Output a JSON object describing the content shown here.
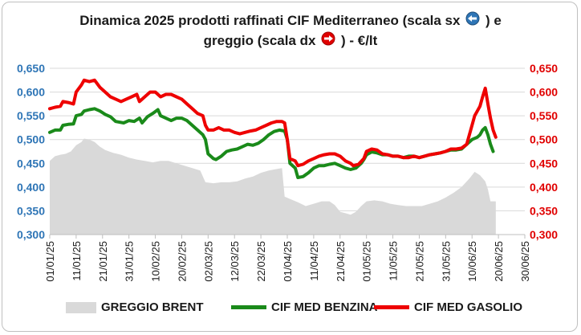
{
  "title_line1": "Dinamica 2025 prodotti raffinati CIF Mediterraneo (scala sx",
  "title_line1_end": ") e",
  "title_line2": "greggio (scala dx",
  "title_line2_end": ") - €/lt",
  "colors": {
    "left_axis": "#2e75b6",
    "right_axis": "#e00000",
    "brent": "#d9d9d9",
    "benzina": "#1a8a1a",
    "gasolio": "#ee0000"
  },
  "chart_data": {
    "type": "line",
    "x_ticks": [
      "01/01/25",
      "11/01/25",
      "21/01/25",
      "31/01/25",
      "10/02/25",
      "20/02/25",
      "02/03/25",
      "12/03/25",
      "22/03/25",
      "01/04/25",
      "11/04/25",
      "21/04/25",
      "01/05/25",
      "11/05/25",
      "21/05/25",
      "31/05/25",
      "10/06/25",
      "20/06/25",
      "30/06/25"
    ],
    "y_left_ticks": [
      "0,300",
      "0,350",
      "0,400",
      "0,450",
      "0,500",
      "0,550",
      "0,600",
      "0,650"
    ],
    "y_right_ticks": [
      "0,300",
      "0,350",
      "0,400",
      "0,450",
      "0,500",
      "0,550",
      "0,600",
      "0,650"
    ],
    "ylim_left": [
      0.3,
      0.65
    ],
    "ylim_right": [
      0.3,
      0.65
    ],
    "x_range_days": [
      0,
      180
    ],
    "grid": true,
    "legend_position": "bottom",
    "series": [
      {
        "name": "GREGGIO BRENT",
        "kind": "area",
        "axis": "right",
        "points": [
          [
            0,
            0.455
          ],
          [
            2,
            0.465
          ],
          [
            4,
            0.468
          ],
          [
            6,
            0.47
          ],
          [
            8,
            0.475
          ],
          [
            10,
            0.488
          ],
          [
            12,
            0.495
          ],
          [
            13,
            0.502
          ],
          [
            15,
            0.5
          ],
          [
            17,
            0.495
          ],
          [
            19,
            0.485
          ],
          [
            21,
            0.478
          ],
          [
            24,
            0.472
          ],
          [
            27,
            0.468
          ],
          [
            30,
            0.462
          ],
          [
            33,
            0.458
          ],
          [
            36,
            0.455
          ],
          [
            39,
            0.452
          ],
          [
            42,
            0.455
          ],
          [
            45,
            0.455
          ],
          [
            48,
            0.45
          ],
          [
            51,
            0.445
          ],
          [
            54,
            0.44
          ],
          [
            57,
            0.435
          ],
          [
            59,
            0.41
          ],
          [
            62,
            0.408
          ],
          [
            65,
            0.41
          ],
          [
            68,
            0.41
          ],
          [
            71,
            0.412
          ],
          [
            74,
            0.418
          ],
          [
            77,
            0.422
          ],
          [
            80,
            0.43
          ],
          [
            83,
            0.435
          ],
          [
            86,
            0.438
          ],
          [
            88,
            0.44
          ],
          [
            89,
            0.38
          ],
          [
            91,
            0.375
          ],
          [
            94,
            0.368
          ],
          [
            97,
            0.36
          ],
          [
            100,
            0.365
          ],
          [
            103,
            0.37
          ],
          [
            106,
            0.37
          ],
          [
            108,
            0.362
          ],
          [
            110,
            0.348
          ],
          [
            112,
            0.345
          ],
          [
            114,
            0.342
          ],
          [
            116,
            0.348
          ],
          [
            118,
            0.36
          ],
          [
            120,
            0.37
          ],
          [
            123,
            0.372
          ],
          [
            126,
            0.37
          ],
          [
            129,
            0.365
          ],
          [
            132,
            0.362
          ],
          [
            135,
            0.36
          ],
          [
            138,
            0.36
          ],
          [
            141,
            0.36
          ],
          [
            144,
            0.365
          ],
          [
            147,
            0.37
          ],
          [
            150,
            0.378
          ],
          [
            153,
            0.388
          ],
          [
            156,
            0.4
          ],
          [
            159,
            0.418
          ],
          [
            161,
            0.432
          ],
          [
            163,
            0.425
          ],
          [
            165,
            0.412
          ],
          [
            166,
            0.395
          ],
          [
            167,
            0.37
          ],
          [
            169,
            0.37
          ]
        ]
      },
      {
        "name": "CIF MED BENZINA",
        "kind": "line",
        "axis": "left",
        "points": [
          [
            0,
            0.515
          ],
          [
            2,
            0.52
          ],
          [
            4,
            0.52
          ],
          [
            5,
            0.53
          ],
          [
            7,
            0.532
          ],
          [
            9,
            0.533
          ],
          [
            10,
            0.55
          ],
          [
            12,
            0.553
          ],
          [
            13,
            0.56
          ],
          [
            15,
            0.563
          ],
          [
            17,
            0.565
          ],
          [
            19,
            0.56
          ],
          [
            21,
            0.553
          ],
          [
            23,
            0.548
          ],
          [
            25,
            0.538
          ],
          [
            28,
            0.535
          ],
          [
            30,
            0.54
          ],
          [
            32,
            0.538
          ],
          [
            34,
            0.545
          ],
          [
            35,
            0.535
          ],
          [
            37,
            0.548
          ],
          [
            39,
            0.555
          ],
          [
            41,
            0.563
          ],
          [
            42,
            0.55
          ],
          [
            44,
            0.545
          ],
          [
            46,
            0.54
          ],
          [
            48,
            0.545
          ],
          [
            50,
            0.545
          ],
          [
            52,
            0.54
          ],
          [
            54,
            0.53
          ],
          [
            56,
            0.52
          ],
          [
            58,
            0.51
          ],
          [
            59,
            0.5
          ],
          [
            60,
            0.47
          ],
          [
            62,
            0.46
          ],
          [
            63,
            0.458
          ],
          [
            65,
            0.465
          ],
          [
            67,
            0.475
          ],
          [
            69,
            0.478
          ],
          [
            71,
            0.48
          ],
          [
            73,
            0.485
          ],
          [
            75,
            0.49
          ],
          [
            77,
            0.488
          ],
          [
            79,
            0.492
          ],
          [
            81,
            0.5
          ],
          [
            83,
            0.51
          ],
          [
            85,
            0.517
          ],
          [
            87,
            0.52
          ],
          [
            89,
            0.518
          ],
          [
            90,
            0.5
          ],
          [
            91,
            0.45
          ],
          [
            93,
            0.44
          ],
          [
            94,
            0.42
          ],
          [
            96,
            0.422
          ],
          [
            98,
            0.43
          ],
          [
            100,
            0.44
          ],
          [
            102,
            0.445
          ],
          [
            104,
            0.445
          ],
          [
            106,
            0.448
          ],
          [
            108,
            0.45
          ],
          [
            110,
            0.445
          ],
          [
            112,
            0.44
          ],
          [
            114,
            0.437
          ],
          [
            116,
            0.44
          ],
          [
            118,
            0.45
          ],
          [
            119,
            0.458
          ],
          [
            120,
            0.468
          ],
          [
            122,
            0.474
          ],
          [
            124,
            0.472
          ],
          [
            126,
            0.468
          ],
          [
            128,
            0.468
          ],
          [
            130,
            0.465
          ],
          [
            132,
            0.465
          ],
          [
            134,
            0.462
          ],
          [
            136,
            0.465
          ],
          [
            138,
            0.465
          ],
          [
            140,
            0.462
          ],
          [
            142,
            0.465
          ],
          [
            144,
            0.468
          ],
          [
            146,
            0.47
          ],
          [
            148,
            0.472
          ],
          [
            150,
            0.475
          ],
          [
            152,
            0.478
          ],
          [
            154,
            0.478
          ],
          [
            156,
            0.48
          ],
          [
            158,
            0.49
          ],
          [
            160,
            0.5
          ],
          [
            162,
            0.505
          ],
          [
            163,
            0.51
          ],
          [
            164,
            0.52
          ],
          [
            165,
            0.525
          ],
          [
            166,
            0.51
          ],
          [
            167,
            0.49
          ],
          [
            168,
            0.475
          ]
        ]
      },
      {
        "name": "CIF MED GASOLIO",
        "kind": "line",
        "axis": "right",
        "points": [
          [
            0,
            0.565
          ],
          [
            2,
            0.568
          ],
          [
            4,
            0.57
          ],
          [
            5,
            0.58
          ],
          [
            7,
            0.578
          ],
          [
            9,
            0.575
          ],
          [
            10,
            0.6
          ],
          [
            12,
            0.615
          ],
          [
            13,
            0.625
          ],
          [
            15,
            0.622
          ],
          [
            17,
            0.625
          ],
          [
            19,
            0.61
          ],
          [
            21,
            0.6
          ],
          [
            23,
            0.59
          ],
          [
            25,
            0.585
          ],
          [
            27,
            0.58
          ],
          [
            29,
            0.585
          ],
          [
            31,
            0.59
          ],
          [
            33,
            0.595
          ],
          [
            34,
            0.58
          ],
          [
            36,
            0.59
          ],
          [
            38,
            0.6
          ],
          [
            40,
            0.6
          ],
          [
            42,
            0.59
          ],
          [
            44,
            0.595
          ],
          [
            46,
            0.595
          ],
          [
            48,
            0.59
          ],
          [
            50,
            0.585
          ],
          [
            52,
            0.575
          ],
          [
            54,
            0.565
          ],
          [
            56,
            0.555
          ],
          [
            58,
            0.55
          ],
          [
            59,
            0.53
          ],
          [
            60,
            0.52
          ],
          [
            62,
            0.52
          ],
          [
            64,
            0.525
          ],
          [
            66,
            0.52
          ],
          [
            68,
            0.52
          ],
          [
            70,
            0.515
          ],
          [
            72,
            0.512
          ],
          [
            74,
            0.515
          ],
          [
            76,
            0.518
          ],
          [
            78,
            0.52
          ],
          [
            80,
            0.525
          ],
          [
            82,
            0.53
          ],
          [
            84,
            0.535
          ],
          [
            86,
            0.538
          ],
          [
            88,
            0.538
          ],
          [
            89,
            0.535
          ],
          [
            90,
            0.5
          ],
          [
            91,
            0.46
          ],
          [
            93,
            0.455
          ],
          [
            94,
            0.445
          ],
          [
            96,
            0.448
          ],
          [
            98,
            0.455
          ],
          [
            100,
            0.46
          ],
          [
            102,
            0.465
          ],
          [
            104,
            0.468
          ],
          [
            106,
            0.47
          ],
          [
            108,
            0.47
          ],
          [
            110,
            0.465
          ],
          [
            112,
            0.455
          ],
          [
            114,
            0.45
          ],
          [
            115,
            0.445
          ],
          [
            117,
            0.448
          ],
          [
            119,
            0.46
          ],
          [
            120,
            0.475
          ],
          [
            122,
            0.48
          ],
          [
            124,
            0.478
          ],
          [
            126,
            0.47
          ],
          [
            128,
            0.468
          ],
          [
            130,
            0.465
          ],
          [
            132,
            0.465
          ],
          [
            134,
            0.462
          ],
          [
            136,
            0.462
          ],
          [
            138,
            0.465
          ],
          [
            140,
            0.462
          ],
          [
            142,
            0.465
          ],
          [
            144,
            0.468
          ],
          [
            146,
            0.47
          ],
          [
            148,
            0.472
          ],
          [
            150,
            0.475
          ],
          [
            152,
            0.48
          ],
          [
            154,
            0.48
          ],
          [
            156,
            0.482
          ],
          [
            158,
            0.49
          ],
          [
            159,
            0.51
          ],
          [
            160,
            0.53
          ],
          [
            161,
            0.55
          ],
          [
            162,
            0.56
          ],
          [
            163,
            0.57
          ],
          [
            164,
            0.59
          ],
          [
            165,
            0.608
          ],
          [
            166,
            0.575
          ],
          [
            167,
            0.545
          ],
          [
            168,
            0.52
          ],
          [
            169,
            0.505
          ]
        ]
      }
    ]
  }
}
